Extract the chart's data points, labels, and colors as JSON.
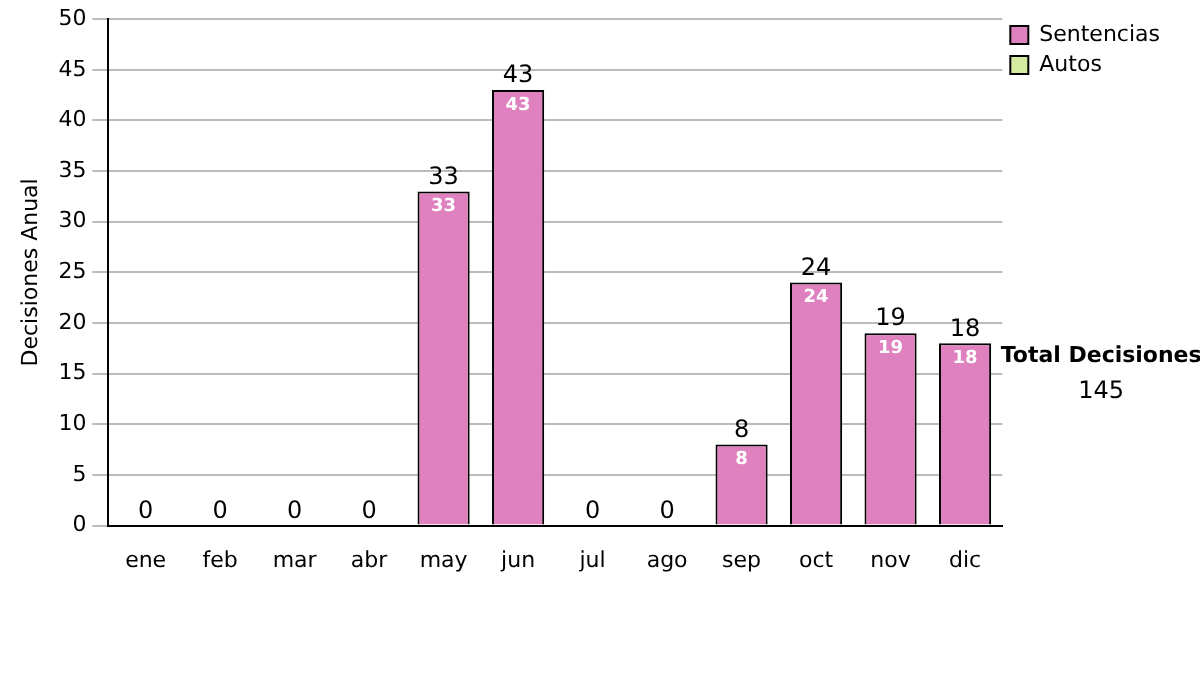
{
  "chart_data": {
    "type": "bar",
    "stacked": true,
    "ylabel": "Decisiones Anual",
    "categories": [
      "ene",
      "feb",
      "mar",
      "abr",
      "may",
      "jun",
      "jul",
      "ago",
      "sep",
      "oct",
      "nov",
      "dic"
    ],
    "series": [
      {
        "name": "Sentencias",
        "color": "#df80bf",
        "values": [
          0,
          0,
          0,
          0,
          33,
          43,
          0,
          0,
          8,
          24,
          19,
          18
        ],
        "value_labels": [
          null,
          null,
          null,
          null,
          "33",
          "43",
          null,
          null,
          "8",
          "24",
          "19",
          "18"
        ]
      },
      {
        "name": "Autos",
        "color": "#d4eaa0",
        "values": [
          0,
          0,
          0,
          0,
          0,
          0,
          0,
          0,
          0,
          0,
          0,
          0
        ]
      }
    ],
    "totals": [
      "0",
      "0",
      "0",
      "0",
      "33",
      "43",
      "0",
      "0",
      "8",
      "24",
      "19",
      "18"
    ],
    "ylim": [
      0,
      50
    ],
    "yticks": [
      0,
      5,
      10,
      15,
      20,
      25,
      30,
      35,
      40,
      45,
      50
    ],
    "grid": "y",
    "legend": "right",
    "annotations": [
      "Total Decisiones",
      "145"
    ]
  }
}
